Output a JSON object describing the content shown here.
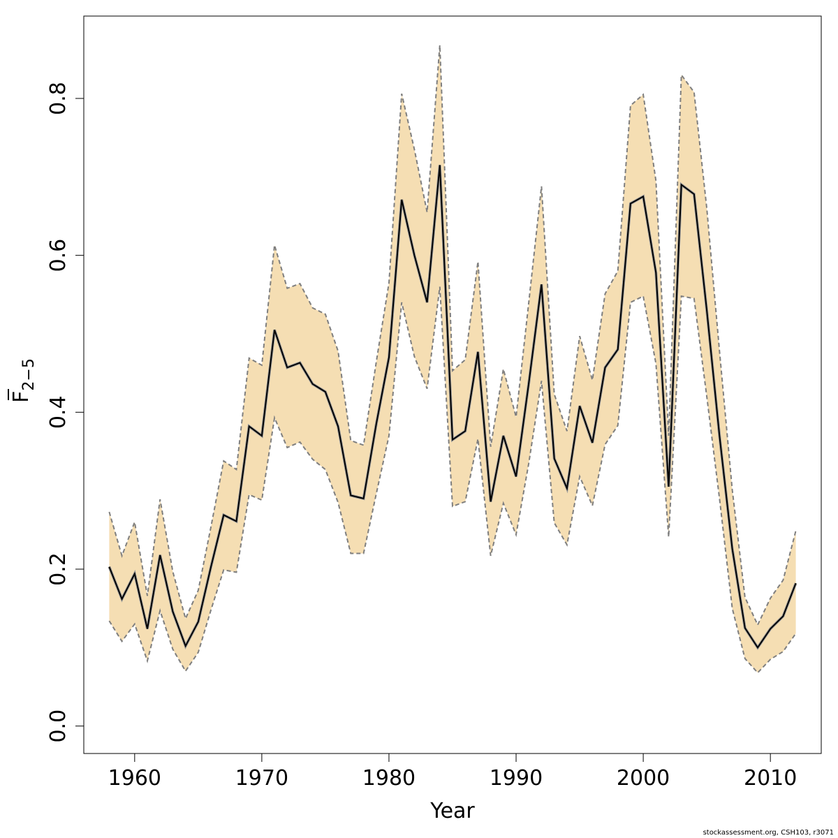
{
  "chart_data": {
    "type": "line",
    "xlabel": "Year",
    "ylabel_main": "F",
    "ylabel_sub": "2−5",
    "xlim": [
      1956,
      2014
    ],
    "ylim": [
      -0.035,
      0.905
    ],
    "xticks": [
      1960,
      1970,
      1980,
      1990,
      2000,
      2010
    ],
    "yticks": [
      0.0,
      0.2,
      0.4,
      0.6,
      0.8
    ],
    "ytick_labels": [
      "0.0",
      "0.2",
      "0.4",
      "0.6",
      "0.8"
    ],
    "xtick_labels": [
      "1960",
      "1970",
      "1980",
      "1990",
      "2000",
      "2010"
    ],
    "grid": false,
    "colors": {
      "band": "#f5deb3",
      "bound_line": "#7f7f7f",
      "estimate_line": "#000000"
    },
    "years": [
      1958,
      1959,
      1960,
      1961,
      1962,
      1963,
      1964,
      1965,
      1966,
      1967,
      1968,
      1969,
      1970,
      1971,
      1972,
      1973,
      1974,
      1975,
      1976,
      1977,
      1978,
      1979,
      1980,
      1981,
      1982,
      1983,
      1984,
      1985,
      1986,
      1987,
      1988,
      1989,
      1990,
      1991,
      1992,
      1993,
      1994,
      1995,
      1996,
      1997,
      1998,
      1999,
      2000,
      2001,
      2002,
      2003,
      2004,
      2005,
      2006,
      2007,
      2008,
      2009,
      2010,
      2011,
      2012
    ],
    "series": [
      {
        "role": "estimate",
        "values": [
          0.203,
          0.162,
          0.194,
          0.124,
          0.218,
          0.146,
          0.102,
          0.133,
          0.203,
          0.269,
          0.261,
          0.382,
          0.37,
          0.505,
          0.457,
          0.463,
          0.436,
          0.426,
          0.382,
          0.294,
          0.29,
          0.385,
          0.47,
          0.671,
          0.6,
          0.54,
          0.715,
          0.365,
          0.376,
          0.477,
          0.286,
          0.37,
          0.318,
          0.437,
          0.563,
          0.341,
          0.303,
          0.408,
          0.361,
          0.457,
          0.48,
          0.666,
          0.675,
          0.578,
          0.305,
          0.69,
          0.678,
          0.53,
          0.37,
          0.226,
          0.125,
          0.1,
          0.124,
          0.14,
          0.182
        ]
      },
      {
        "role": "upper",
        "values": [
          0.273,
          0.217,
          0.26,
          0.166,
          0.289,
          0.197,
          0.137,
          0.173,
          0.254,
          0.338,
          0.327,
          0.469,
          0.46,
          0.613,
          0.558,
          0.564,
          0.533,
          0.525,
          0.478,
          0.364,
          0.358,
          0.464,
          0.565,
          0.806,
          0.735,
          0.655,
          0.868,
          0.453,
          0.467,
          0.592,
          0.356,
          0.455,
          0.394,
          0.54,
          0.688,
          0.423,
          0.376,
          0.497,
          0.441,
          0.551,
          0.58,
          0.791,
          0.805,
          0.695,
          0.37,
          0.83,
          0.808,
          0.66,
          0.478,
          0.301,
          0.164,
          0.129,
          0.163,
          0.186,
          0.249
        ]
      },
      {
        "role": "lower",
        "values": [
          0.134,
          0.108,
          0.13,
          0.083,
          0.147,
          0.098,
          0.07,
          0.094,
          0.148,
          0.199,
          0.196,
          0.295,
          0.288,
          0.393,
          0.355,
          0.362,
          0.34,
          0.327,
          0.285,
          0.22,
          0.22,
          0.296,
          0.37,
          0.54,
          0.471,
          0.43,
          0.56,
          0.28,
          0.286,
          0.366,
          0.217,
          0.284,
          0.244,
          0.335,
          0.44,
          0.259,
          0.231,
          0.318,
          0.281,
          0.359,
          0.383,
          0.54,
          0.548,
          0.462,
          0.241,
          0.548,
          0.545,
          0.42,
          0.29,
          0.15,
          0.086,
          0.068,
          0.085,
          0.095,
          0.118
        ]
      }
    ]
  },
  "footer_text": "stockassessment.org, CSH103, r3071"
}
